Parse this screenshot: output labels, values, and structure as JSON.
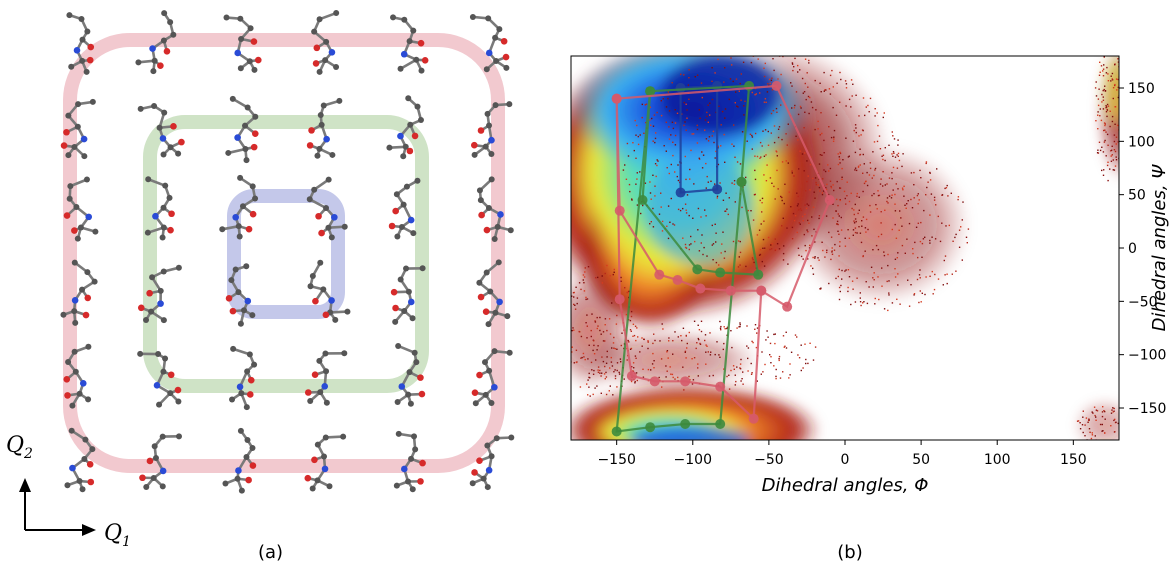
{
  "panel_a": {
    "caption": "(a)",
    "axis_q1_main": "Q",
    "axis_q1_sub": "1",
    "axis_q2_main": "Q",
    "axis_q2_sub": "2",
    "loop_colors": {
      "outer": "#f2c9cf",
      "middle": "#cfe3c6",
      "inner": "#c4c8ea"
    },
    "atom_colors": {
      "carbon": "#555555",
      "oxygen": "#d62a2a",
      "nitrogen": "#2a4bd6",
      "bond": "#7a7a7a"
    }
  },
  "panel_b": {
    "caption": "(b)",
    "xlabel": "Dihedral angles, Φ",
    "ylabel": "Dihedral angles, Ψ",
    "xticks": [
      "−150",
      "−100",
      "−50",
      "0",
      "50",
      "100",
      "150"
    ],
    "yticks": [
      "150",
      "100",
      "50",
      "0",
      "−50",
      "−100",
      "−150"
    ]
  },
  "chart_data": {
    "type": "scatter",
    "xlabel": "Dihedral angles, Φ",
    "ylabel": "Dihedral angles, Ψ",
    "xlim": [
      -180,
      180
    ],
    "ylim": [
      -180,
      180
    ],
    "xticks": [
      -150,
      -100,
      -50,
      0,
      50,
      100,
      150
    ],
    "yticks": [
      -150,
      -100,
      -50,
      0,
      50,
      100,
      150
    ],
    "background": "Ramachandran density map (jet colormap)",
    "series": [
      {
        "color": "#1f3f9a",
        "points": [
          [
            -108,
            150
          ],
          [
            -84,
            152
          ],
          [
            -84,
            55
          ],
          [
            -108,
            52
          ],
          [
            -108,
            150
          ]
        ]
      },
      {
        "color": "#3d8b3d",
        "points": [
          [
            -128,
            147
          ],
          [
            -63,
            152
          ],
          [
            -68,
            62
          ],
          [
            -57,
            -25
          ],
          [
            -82,
            -23
          ],
          [
            -97,
            -20
          ],
          [
            -133,
            45
          ],
          [
            -128,
            147
          ],
          [
            -150,
            -172
          ],
          [
            -128,
            -168
          ],
          [
            -105,
            -165
          ],
          [
            -82,
            -165
          ],
          [
            -68,
            62
          ]
        ]
      },
      {
        "color": "#d65a6a",
        "points": [
          [
            -150,
            140
          ],
          [
            -45,
            152
          ],
          [
            -10,
            45
          ],
          [
            -38,
            -55
          ],
          [
            -55,
            -40
          ],
          [
            -75,
            -40
          ],
          [
            -95,
            -38
          ],
          [
            -110,
            -30
          ],
          [
            -122,
            -25
          ],
          [
            -148,
            35
          ],
          [
            -150,
            140
          ],
          [
            -148,
            -48
          ],
          [
            -140,
            -120
          ],
          [
            -125,
            -125
          ],
          [
            -105,
            -125
          ],
          [
            -82,
            -130
          ],
          [
            -60,
            -160
          ],
          [
            -55,
            -40
          ]
        ]
      }
    ]
  }
}
